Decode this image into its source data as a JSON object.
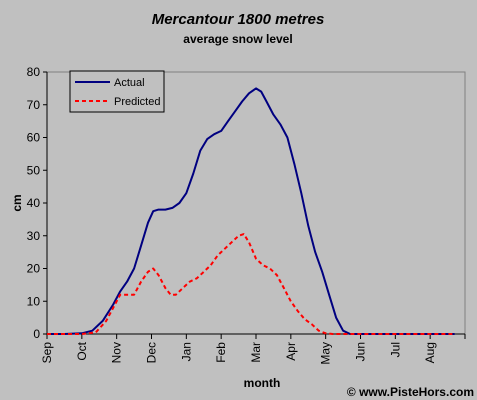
{
  "chart_data": {
    "type": "line",
    "title": "Mercantour 1800 metres",
    "subtitle": "average snow level",
    "xlabel": "month",
    "ylabel": "cm",
    "ylim": [
      0,
      80
    ],
    "yticks": [
      0,
      10,
      20,
      30,
      40,
      50,
      60,
      70,
      80
    ],
    "categories": [
      "Sep",
      "Oct",
      "Nov",
      "Dec",
      "Jan",
      "Feb",
      "Mar",
      "Apr",
      "May",
      "Jun",
      "Jul",
      "Aug"
    ],
    "x_unit": "month index (0 = start of Sep)",
    "legend_position": "top-left",
    "series": [
      {
        "name": "Actual",
        "color": "#000080",
        "style": "solid",
        "points": [
          [
            0,
            0
          ],
          [
            0.5,
            0
          ],
          [
            1,
            0.2
          ],
          [
            1.3,
            1
          ],
          [
            1.6,
            4
          ],
          [
            1.9,
            9
          ],
          [
            2.1,
            13
          ],
          [
            2.3,
            16
          ],
          [
            2.5,
            20
          ],
          [
            2.7,
            27
          ],
          [
            2.9,
            34
          ],
          [
            3.05,
            37.5
          ],
          [
            3.2,
            38
          ],
          [
            3.4,
            38
          ],
          [
            3.6,
            38.5
          ],
          [
            3.8,
            40
          ],
          [
            4.0,
            43
          ],
          [
            4.2,
            49
          ],
          [
            4.4,
            56
          ],
          [
            4.6,
            59.5
          ],
          [
            4.8,
            61
          ],
          [
            5.0,
            62
          ],
          [
            5.2,
            65
          ],
          [
            5.4,
            68
          ],
          [
            5.6,
            71
          ],
          [
            5.8,
            73.5
          ],
          [
            6.0,
            75
          ],
          [
            6.15,
            74
          ],
          [
            6.3,
            71
          ],
          [
            6.5,
            67
          ],
          [
            6.7,
            64
          ],
          [
            6.9,
            60
          ],
          [
            7.1,
            52
          ],
          [
            7.3,
            43
          ],
          [
            7.5,
            33
          ],
          [
            7.7,
            25
          ],
          [
            7.9,
            19
          ],
          [
            8.1,
            12
          ],
          [
            8.3,
            5
          ],
          [
            8.5,
            1
          ],
          [
            8.7,
            0
          ],
          [
            9,
            0
          ],
          [
            11.7,
            0
          ]
        ]
      },
      {
        "name": "Predicted",
        "color": "#ff0000",
        "style": "dashed",
        "points": [
          [
            0,
            0
          ],
          [
            1,
            0
          ],
          [
            1.4,
            0.5
          ],
          [
            1.7,
            4
          ],
          [
            1.9,
            8
          ],
          [
            2.1,
            12
          ],
          [
            2.3,
            12
          ],
          [
            2.5,
            12
          ],
          [
            2.7,
            16
          ],
          [
            2.9,
            19
          ],
          [
            3.05,
            20
          ],
          [
            3.2,
            18
          ],
          [
            3.4,
            14
          ],
          [
            3.55,
            12
          ],
          [
            3.7,
            12
          ],
          [
            3.9,
            14
          ],
          [
            4.1,
            16
          ],
          [
            4.3,
            17
          ],
          [
            4.5,
            19
          ],
          [
            4.7,
            21
          ],
          [
            4.9,
            24
          ],
          [
            5.1,
            26
          ],
          [
            5.3,
            28
          ],
          [
            5.5,
            30
          ],
          [
            5.65,
            30.5
          ],
          [
            5.8,
            28
          ],
          [
            6.0,
            23
          ],
          [
            6.2,
            21
          ],
          [
            6.4,
            20
          ],
          [
            6.6,
            18
          ],
          [
            6.8,
            14
          ],
          [
            7.0,
            10
          ],
          [
            7.2,
            7
          ],
          [
            7.4,
            4.5
          ],
          [
            7.6,
            3
          ],
          [
            7.8,
            1
          ],
          [
            8.0,
            0.2
          ],
          [
            8.2,
            0
          ],
          [
            11.7,
            0
          ]
        ]
      }
    ]
  },
  "credit": "© www.PisteHors.com"
}
